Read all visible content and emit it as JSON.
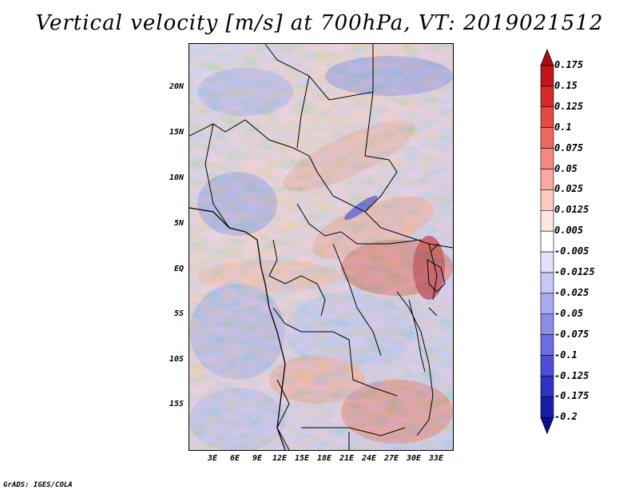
{
  "title": "Vertical velocity [m/s] at 700hPa, VT: 2019021512",
  "credit": "GrADS: IGES/COLA",
  "lat_labels": [
    "20N",
    "15N",
    "10N",
    "5N",
    "EQ",
    "5S",
    "10S",
    "15S"
  ],
  "lon_labels": [
    "3E",
    "6E",
    "9E",
    "12E",
    "15E",
    "18E",
    "21E",
    "24E",
    "27E",
    "30E",
    "33E"
  ],
  "colorbar": {
    "labels": [
      "0.175",
      "0.15",
      "0.125",
      "0.1",
      "0.075",
      "0.05",
      "0.025",
      "0.0125",
      "0.005",
      "-0.005",
      "-0.0125",
      "-0.025",
      "-0.05",
      "-0.075",
      "-0.1",
      "-0.125",
      "-0.175",
      "-0.2"
    ],
    "colors": [
      "#a50f15",
      "#c0151c",
      "#d42a2a",
      "#e34a45",
      "#ec6a62",
      "#f48a82",
      "#f8aaa2",
      "#fbcac4",
      "#fde6e2",
      "#ffffff",
      "#e2e3fb",
      "#c7c8f6",
      "#a9aaf0",
      "#8b8ce8",
      "#6c6de0",
      "#4d4ed4",
      "#2f30c4",
      "#1b1ca8",
      "#0d0e8a"
    ]
  }
}
